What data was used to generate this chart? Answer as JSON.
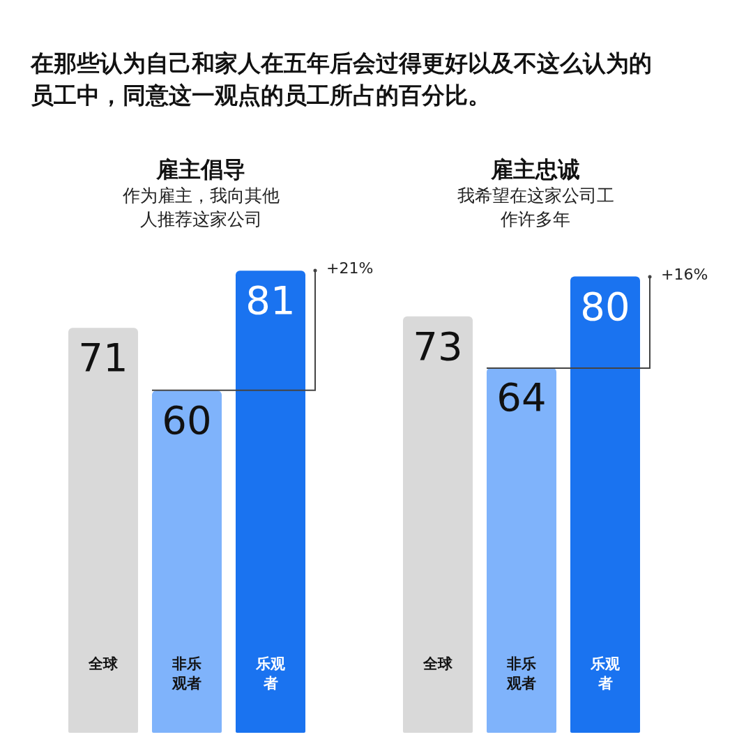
{
  "chart_data": [
    {
      "type": "other",
      "title": "在那些认为自己和家人在五年后会过得更好以及不这么认为的员工中，同意这一观点的员工所占的百分比。"
    },
    {
      "type": "bar",
      "title": "雇主倡导",
      "subtitle": "作为雇主，我向其他人推荐这家公司",
      "categories": [
        "全球",
        "非乐观者",
        "乐观者"
      ],
      "values": [
        71,
        60,
        81
      ],
      "colors": [
        "#d9d9d9",
        "#7fb3fb",
        "#1a73f0"
      ],
      "data_labels": true,
      "annotations": [
        "+21%"
      ]
    },
    {
      "type": "bar",
      "title": "雇主忠诚",
      "subtitle": "我希望在这家公司工作许多年",
      "categories": [
        "全球",
        "非乐观者",
        "乐观者"
      ],
      "values": [
        73,
        64,
        80
      ],
      "colors": [
        "#d9d9d9",
        "#7fb3fb",
        "#1a73f0"
      ],
      "data_labels": true,
      "annotations": [
        "+16%"
      ]
    }
  ]
}
